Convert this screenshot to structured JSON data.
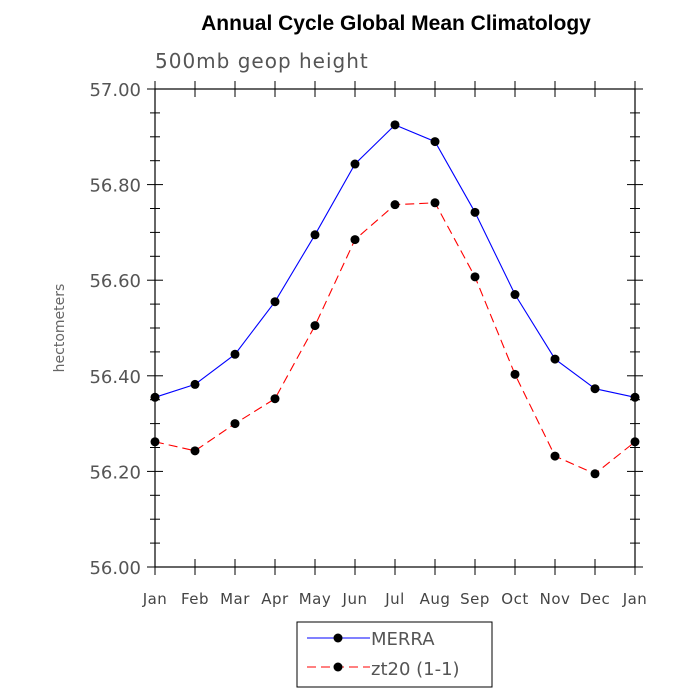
{
  "chart_data": {
    "type": "line",
    "title": "Annual Cycle Global Mean Climatology",
    "subtitle": "500mb geop height",
    "xlabel": "",
    "ylabel": "hectometers",
    "categories": [
      "Jan",
      "Feb",
      "Mar",
      "Apr",
      "May",
      "Jun",
      "Jul",
      "Aug",
      "Sep",
      "Oct",
      "Nov",
      "Dec",
      "Jan"
    ],
    "ylim": [
      56.0,
      57.0
    ],
    "y_ticks": [
      "56.00",
      "56.20",
      "56.40",
      "56.60",
      "56.80",
      "57.00"
    ],
    "grid": false,
    "legend_position": "bottom-center",
    "series": [
      {
        "name": "MERRA",
        "color": "#0000ff",
        "line_style": "solid",
        "marker": "filled-circle",
        "values": [
          56.355,
          56.382,
          56.445,
          56.555,
          56.695,
          56.843,
          56.925,
          56.89,
          56.742,
          56.57,
          56.435,
          56.373,
          56.355
        ]
      },
      {
        "name": "zt20 (1-1)",
        "color": "#ff0000",
        "line_style": "dashed",
        "marker": "filled-circle",
        "values": [
          56.262,
          56.243,
          56.3,
          56.352,
          56.505,
          56.685,
          56.758,
          56.762,
          56.607,
          56.403,
          56.232,
          56.195,
          56.262
        ]
      }
    ]
  }
}
